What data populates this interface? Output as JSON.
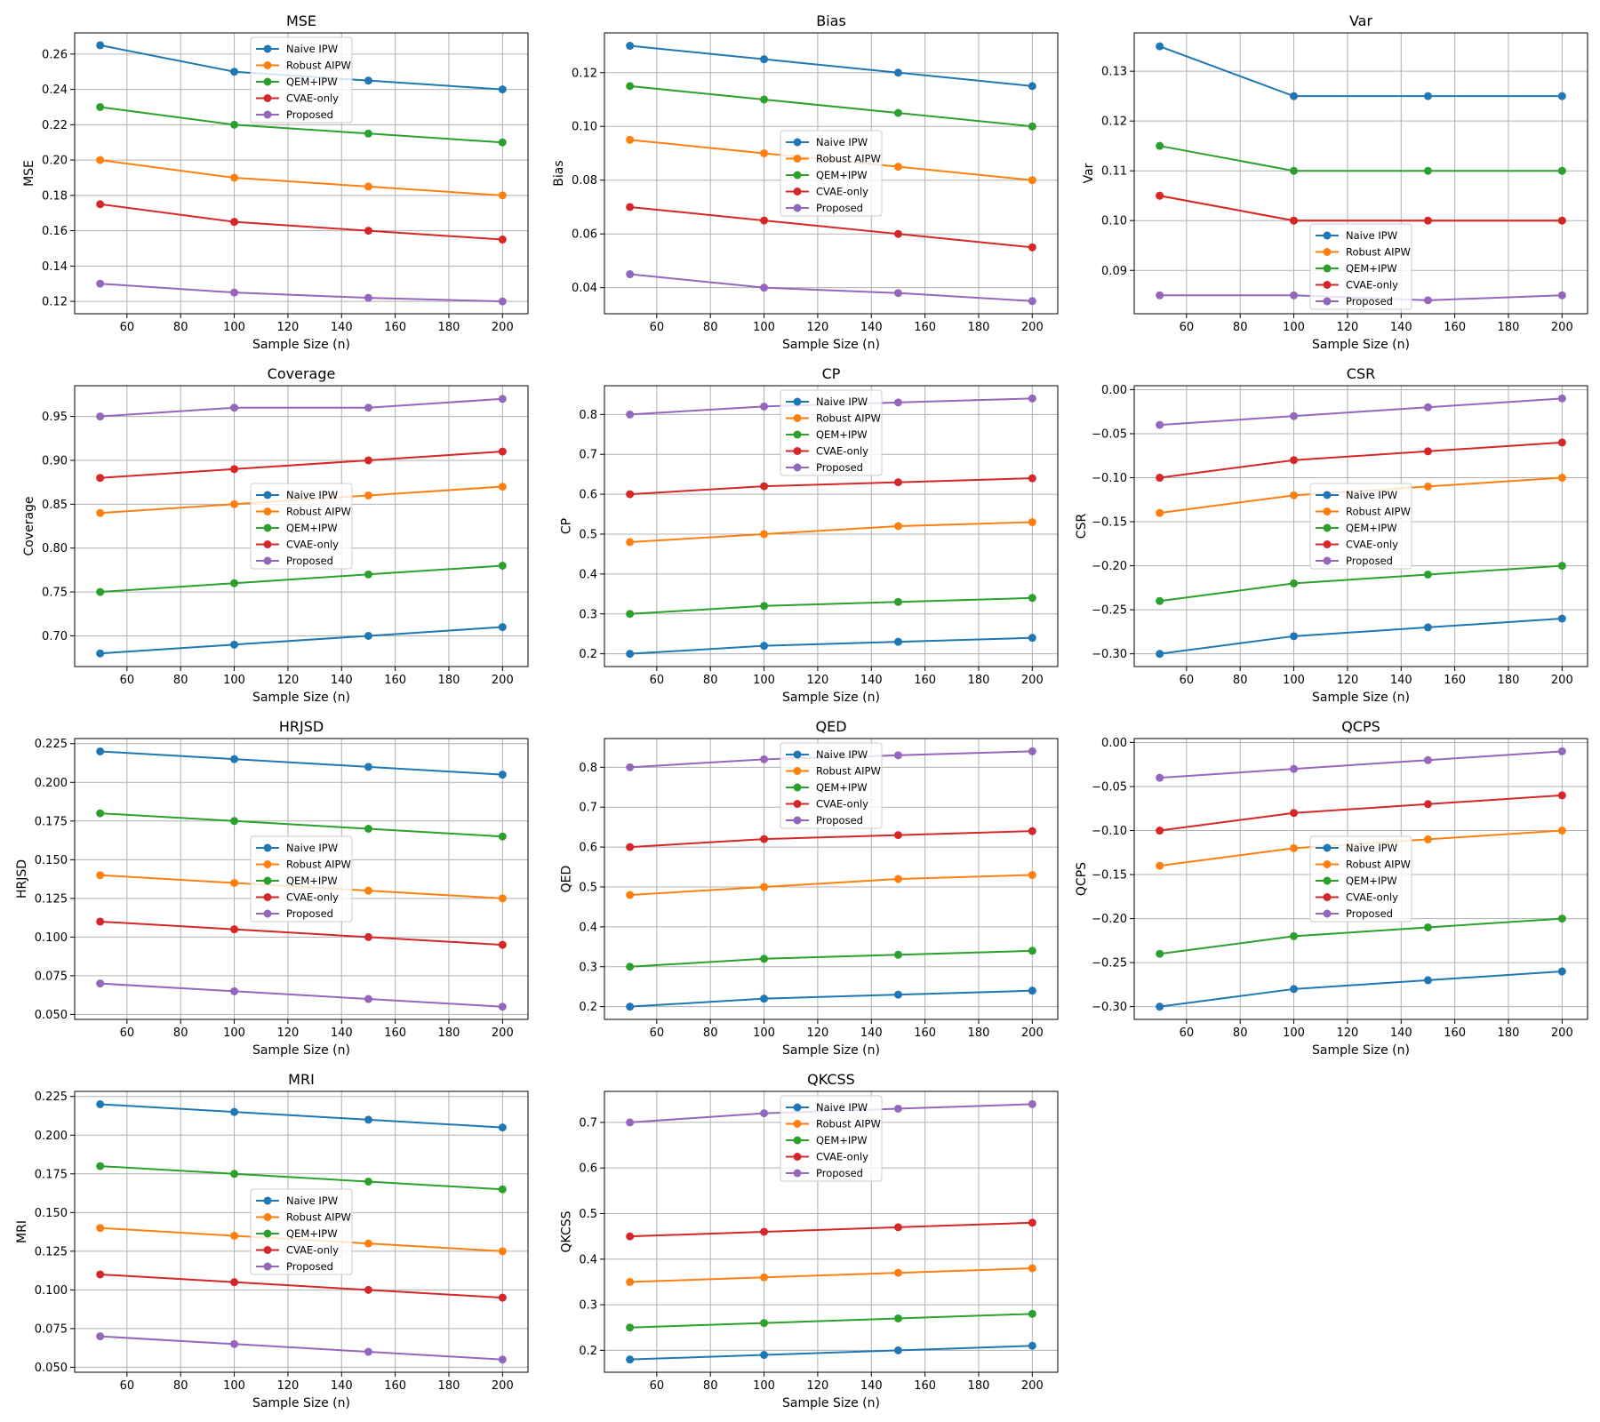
{
  "series_names": [
    "Naive IPW",
    "Robust AIPW",
    "QEM+IPW",
    "CVAE-only",
    "Proposed"
  ],
  "series_colors": [
    "#1f77b4",
    "#ff7f0e",
    "#2ca02c",
    "#d62728",
    "#9467bd"
  ],
  "chart_data": [
    {
      "type": "line",
      "title": "MSE",
      "xlabel": "Sample Size (n)",
      "ylabel": "MSE",
      "x": [
        50,
        100,
        150,
        200
      ],
      "xlim": [
        40.5,
        209.5
      ],
      "xticks": [
        "60",
        "80",
        "100",
        "120",
        "140",
        "160",
        "180",
        "200"
      ],
      "ylim": [
        0.113,
        0.272
      ],
      "yticks": [
        "0.12",
        "0.14",
        "0.16",
        "0.18",
        "0.20",
        "0.22",
        "0.24",
        "0.26"
      ],
      "legend_loc": "upper center",
      "series": [
        {
          "name": "Naive IPW",
          "values": [
            0.265,
            0.25,
            0.245,
            0.24
          ]
        },
        {
          "name": "Robust AIPW",
          "values": [
            0.2,
            0.19,
            0.185,
            0.18
          ]
        },
        {
          "name": "QEM+IPW",
          "values": [
            0.23,
            0.22,
            0.215,
            0.21
          ]
        },
        {
          "name": "CVAE-only",
          "values": [
            0.175,
            0.165,
            0.16,
            0.155
          ]
        },
        {
          "name": "Proposed",
          "values": [
            0.13,
            0.125,
            0.122,
            0.12
          ]
        }
      ]
    },
    {
      "type": "line",
      "title": "Bias",
      "xlabel": "Sample Size (n)",
      "ylabel": "Bias",
      "x": [
        50,
        100,
        150,
        200
      ],
      "xlim": [
        40.5,
        209.5
      ],
      "xticks": [
        "60",
        "80",
        "100",
        "120",
        "140",
        "160",
        "180",
        "200"
      ],
      "ylim": [
        0.0303,
        0.1348
      ],
      "yticks": [
        "0.04",
        "0.06",
        "0.08",
        "0.10",
        "0.12"
      ],
      "legend_loc": "center",
      "series": [
        {
          "name": "Naive IPW",
          "values": [
            0.13,
            0.125,
            0.12,
            0.115
          ]
        },
        {
          "name": "Robust AIPW",
          "values": [
            0.095,
            0.09,
            0.085,
            0.08
          ]
        },
        {
          "name": "QEM+IPW",
          "values": [
            0.115,
            0.11,
            0.105,
            0.1
          ]
        },
        {
          "name": "CVAE-only",
          "values": [
            0.07,
            0.065,
            0.06,
            0.055
          ]
        },
        {
          "name": "Proposed",
          "values": [
            0.045,
            0.04,
            0.038,
            0.035
          ]
        }
      ]
    },
    {
      "type": "line",
      "title": "Var",
      "xlabel": "Sample Size (n)",
      "ylabel": "Var",
      "x": [
        50,
        100,
        150,
        200
      ],
      "xlim": [
        40.5,
        209.5
      ],
      "xticks": [
        "60",
        "80",
        "100",
        "120",
        "140",
        "160",
        "180",
        "200"
      ],
      "ylim": [
        0.0813,
        0.1377
      ],
      "yticks": [
        "0.09",
        "0.10",
        "0.11",
        "0.12",
        "0.13"
      ],
      "legend_loc": "lower center",
      "series": [
        {
          "name": "Naive IPW",
          "values": [
            0.135,
            0.125,
            0.125,
            0.125
          ]
        },
        {
          "name": "Robust AIPW",
          "values": [
            0.105,
            0.1,
            0.1,
            0.1
          ]
        },
        {
          "name": "QEM+IPW",
          "values": [
            0.115,
            0.11,
            0.11,
            0.11
          ]
        },
        {
          "name": "CVAE-only",
          "values": [
            0.105,
            0.1,
            0.1,
            0.1
          ]
        },
        {
          "name": "Proposed",
          "values": [
            0.085,
            0.085,
            0.084,
            0.085
          ]
        }
      ]
    },
    {
      "type": "line",
      "title": "Coverage",
      "xlabel": "Sample Size (n)",
      "ylabel": "Coverage",
      "x": [
        50,
        100,
        150,
        200
      ],
      "xlim": [
        40.5,
        209.5
      ],
      "xticks": [
        "60",
        "80",
        "100",
        "120",
        "140",
        "160",
        "180",
        "200"
      ],
      "ylim": [
        0.665,
        0.985
      ],
      "yticks": [
        "0.70",
        "0.75",
        "0.80",
        "0.85",
        "0.90",
        "0.95"
      ],
      "legend_loc": "center",
      "series": [
        {
          "name": "Naive IPW",
          "values": [
            0.68,
            0.69,
            0.7,
            0.71
          ]
        },
        {
          "name": "Robust AIPW",
          "values": [
            0.84,
            0.85,
            0.86,
            0.87
          ]
        },
        {
          "name": "QEM+IPW",
          "values": [
            0.75,
            0.76,
            0.77,
            0.78
          ]
        },
        {
          "name": "CVAE-only",
          "values": [
            0.88,
            0.89,
            0.9,
            0.91
          ]
        },
        {
          "name": "Proposed",
          "values": [
            0.95,
            0.96,
            0.96,
            0.97
          ]
        }
      ]
    },
    {
      "type": "line",
      "title": "CP",
      "xlabel": "Sample Size (n)",
      "ylabel": "CP",
      "x": [
        50,
        100,
        150,
        200
      ],
      "xlim": [
        40.5,
        209.5
      ],
      "xticks": [
        "60",
        "80",
        "100",
        "120",
        "140",
        "160",
        "180",
        "200"
      ],
      "ylim": [
        0.168,
        0.872
      ],
      "yticks": [
        "0.2",
        "0.3",
        "0.4",
        "0.5",
        "0.6",
        "0.7",
        "0.8"
      ],
      "legend_loc": "upper center",
      "series": [
        {
          "name": "Naive IPW",
          "values": [
            0.2,
            0.22,
            0.23,
            0.24
          ]
        },
        {
          "name": "Robust AIPW",
          "values": [
            0.48,
            0.5,
            0.52,
            0.53
          ]
        },
        {
          "name": "QEM+IPW",
          "values": [
            0.3,
            0.32,
            0.33,
            0.34
          ]
        },
        {
          "name": "CVAE-only",
          "values": [
            0.6,
            0.62,
            0.63,
            0.64
          ]
        },
        {
          "name": "Proposed",
          "values": [
            0.8,
            0.82,
            0.83,
            0.84
          ]
        }
      ]
    },
    {
      "type": "line",
      "title": "CSR",
      "xlabel": "Sample Size (n)",
      "ylabel": "CSR",
      "x": [
        50,
        100,
        150,
        200
      ],
      "xlim": [
        40.5,
        209.5
      ],
      "xticks": [
        "60",
        "80",
        "100",
        "120",
        "140",
        "160",
        "180",
        "200"
      ],
      "ylim": [
        -0.3145,
        0.0045
      ],
      "yticks": [
        "−0.30",
        "−0.25",
        "−0.20",
        "−0.15",
        "−0.10",
        "−0.05",
        "0.00"
      ],
      "legend_loc": "center",
      "series": [
        {
          "name": "Naive IPW",
          "values": [
            -0.3,
            -0.28,
            -0.27,
            -0.26
          ]
        },
        {
          "name": "Robust AIPW",
          "values": [
            -0.14,
            -0.12,
            -0.11,
            -0.1
          ]
        },
        {
          "name": "QEM+IPW",
          "values": [
            -0.24,
            -0.22,
            -0.21,
            -0.2
          ]
        },
        {
          "name": "CVAE-only",
          "values": [
            -0.1,
            -0.08,
            -0.07,
            -0.06
          ]
        },
        {
          "name": "Proposed",
          "values": [
            -0.04,
            -0.03,
            -0.02,
            -0.01
          ]
        }
      ]
    },
    {
      "type": "line",
      "title": "HRJSD",
      "xlabel": "Sample Size (n)",
      "ylabel": "HRJSD",
      "x": [
        50,
        100,
        150,
        200
      ],
      "xlim": [
        40.5,
        209.5
      ],
      "xticks": [
        "60",
        "80",
        "100",
        "120",
        "140",
        "160",
        "180",
        "200"
      ],
      "ylim": [
        0.0468,
        0.2283
      ],
      "yticks": [
        "0.050",
        "0.075",
        "0.100",
        "0.125",
        "0.150",
        "0.175",
        "0.200",
        "0.225"
      ],
      "legend_loc": "center",
      "series": [
        {
          "name": "Naive IPW",
          "values": [
            0.22,
            0.215,
            0.21,
            0.205
          ]
        },
        {
          "name": "Robust AIPW",
          "values": [
            0.14,
            0.135,
            0.13,
            0.125
          ]
        },
        {
          "name": "QEM+IPW",
          "values": [
            0.18,
            0.175,
            0.17,
            0.165
          ]
        },
        {
          "name": "CVAE-only",
          "values": [
            0.11,
            0.105,
            0.1,
            0.095
          ]
        },
        {
          "name": "Proposed",
          "values": [
            0.07,
            0.065,
            0.06,
            0.055
          ]
        }
      ]
    },
    {
      "type": "line",
      "title": "QED",
      "xlabel": "Sample Size (n)",
      "ylabel": "QED",
      "x": [
        50,
        100,
        150,
        200
      ],
      "xlim": [
        40.5,
        209.5
      ],
      "xticks": [
        "60",
        "80",
        "100",
        "120",
        "140",
        "160",
        "180",
        "200"
      ],
      "ylim": [
        0.168,
        0.872
      ],
      "yticks": [
        "0.2",
        "0.3",
        "0.4",
        "0.5",
        "0.6",
        "0.7",
        "0.8"
      ],
      "legend_loc": "upper center",
      "series": [
        {
          "name": "Naive IPW",
          "values": [
            0.2,
            0.22,
            0.23,
            0.24
          ]
        },
        {
          "name": "Robust AIPW",
          "values": [
            0.48,
            0.5,
            0.52,
            0.53
          ]
        },
        {
          "name": "QEM+IPW",
          "values": [
            0.3,
            0.32,
            0.33,
            0.34
          ]
        },
        {
          "name": "CVAE-only",
          "values": [
            0.6,
            0.62,
            0.63,
            0.64
          ]
        },
        {
          "name": "Proposed",
          "values": [
            0.8,
            0.82,
            0.83,
            0.84
          ]
        }
      ]
    },
    {
      "type": "line",
      "title": "QCPS",
      "xlabel": "Sample Size (n)",
      "ylabel": "QCPS",
      "x": [
        50,
        100,
        150,
        200
      ],
      "xlim": [
        40.5,
        209.5
      ],
      "xticks": [
        "60",
        "80",
        "100",
        "120",
        "140",
        "160",
        "180",
        "200"
      ],
      "ylim": [
        -0.3145,
        0.0045
      ],
      "yticks": [
        "−0.30",
        "−0.25",
        "−0.20",
        "−0.15",
        "−0.10",
        "−0.05",
        "0.00"
      ],
      "legend_loc": "center",
      "series": [
        {
          "name": "Naive IPW",
          "values": [
            -0.3,
            -0.28,
            -0.27,
            -0.26
          ]
        },
        {
          "name": "Robust AIPW",
          "values": [
            -0.14,
            -0.12,
            -0.11,
            -0.1
          ]
        },
        {
          "name": "QEM+IPW",
          "values": [
            -0.24,
            -0.22,
            -0.21,
            -0.2
          ]
        },
        {
          "name": "CVAE-only",
          "values": [
            -0.1,
            -0.08,
            -0.07,
            -0.06
          ]
        },
        {
          "name": "Proposed",
          "values": [
            -0.04,
            -0.03,
            -0.02,
            -0.01
          ]
        }
      ]
    },
    {
      "type": "line",
      "title": "MRI",
      "xlabel": "Sample Size (n)",
      "ylabel": "MRI",
      "x": [
        50,
        100,
        150,
        200
      ],
      "xlim": [
        40.5,
        209.5
      ],
      "xticks": [
        "60",
        "80",
        "100",
        "120",
        "140",
        "160",
        "180",
        "200"
      ],
      "ylim": [
        0.0468,
        0.2283
      ],
      "yticks": [
        "0.050",
        "0.075",
        "0.100",
        "0.125",
        "0.150",
        "0.175",
        "0.200",
        "0.225"
      ],
      "legend_loc": "center",
      "series": [
        {
          "name": "Naive IPW",
          "values": [
            0.22,
            0.215,
            0.21,
            0.205
          ]
        },
        {
          "name": "Robust AIPW",
          "values": [
            0.14,
            0.135,
            0.13,
            0.125
          ]
        },
        {
          "name": "QEM+IPW",
          "values": [
            0.18,
            0.175,
            0.17,
            0.165
          ]
        },
        {
          "name": "CVAE-only",
          "values": [
            0.11,
            0.105,
            0.1,
            0.095
          ]
        },
        {
          "name": "Proposed",
          "values": [
            0.07,
            0.065,
            0.06,
            0.055
          ]
        }
      ]
    },
    {
      "type": "line",
      "title": "QKCSS",
      "xlabel": "Sample Size (n)",
      "ylabel": "QKCSS",
      "x": [
        50,
        100,
        150,
        200
      ],
      "xlim": [
        40.5,
        209.5
      ],
      "xticks": [
        "60",
        "80",
        "100",
        "120",
        "140",
        "160",
        "180",
        "200"
      ],
      "ylim": [
        0.152,
        0.768
      ],
      "yticks": [
        "0.2",
        "0.3",
        "0.4",
        "0.5",
        "0.6",
        "0.7"
      ],
      "legend_loc": "upper center",
      "series": [
        {
          "name": "Naive IPW",
          "values": [
            0.18,
            0.19,
            0.2,
            0.21
          ]
        },
        {
          "name": "Robust AIPW",
          "values": [
            0.35,
            0.36,
            0.37,
            0.38
          ]
        },
        {
          "name": "QEM+IPW",
          "values": [
            0.25,
            0.26,
            0.27,
            0.28
          ]
        },
        {
          "name": "CVAE-only",
          "values": [
            0.45,
            0.46,
            0.47,
            0.48
          ]
        },
        {
          "name": "Proposed",
          "values": [
            0.7,
            0.72,
            0.73,
            0.74
          ]
        }
      ]
    }
  ]
}
